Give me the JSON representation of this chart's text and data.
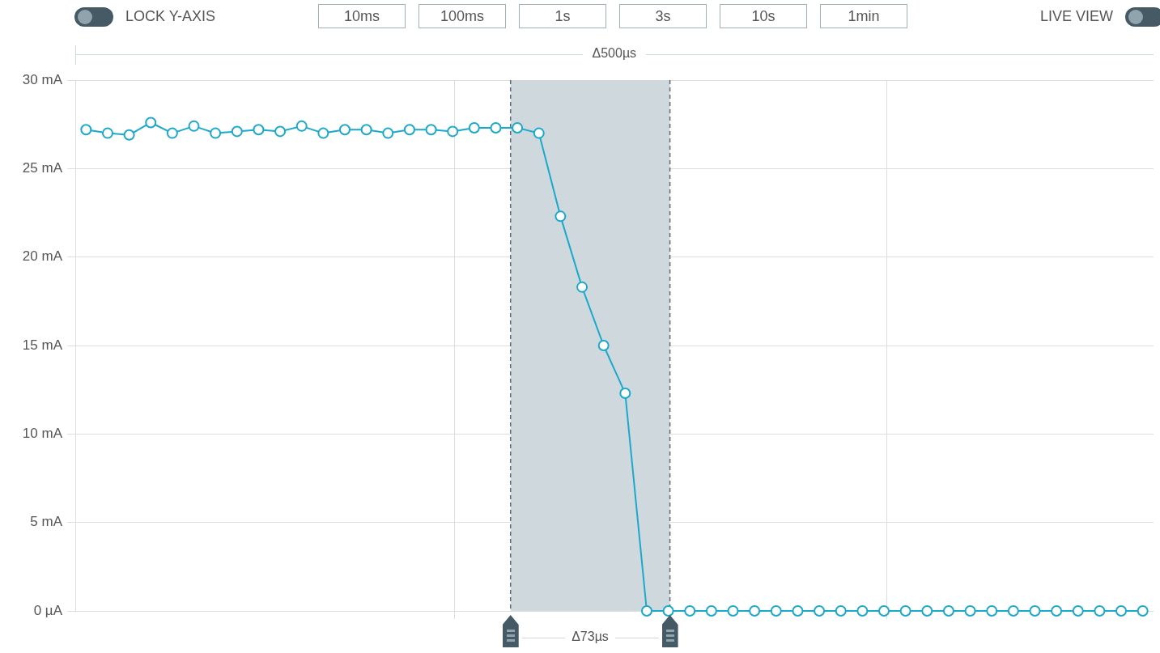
{
  "chart_data": {
    "type": "line",
    "categories": [
      null,
      null,
      null,
      null,
      null,
      null,
      null,
      null,
      null,
      null,
      null,
      null,
      null,
      null,
      null,
      null,
      null,
      null,
      null,
      null,
      null,
      null,
      null,
      null,
      null,
      null,
      null,
      null,
      null,
      null,
      null,
      null,
      null,
      null,
      null,
      null,
      null,
      null,
      null,
      null,
      null,
      null,
      null,
      null,
      null,
      null,
      null,
      null,
      null,
      null
    ],
    "series": [
      {
        "color": "#1aa9cc",
        "values": [
          27.2,
          27.0,
          26.9,
          27.6,
          27.0,
          27.4,
          27.0,
          27.1,
          27.2,
          27.1,
          27.4,
          27.0,
          27.2,
          27.2,
          27.0,
          27.2,
          27.2,
          27.1,
          27.3,
          27.3,
          27.3,
          27.0,
          22.3,
          18.3,
          15.0,
          12.3,
          0,
          0,
          0,
          0,
          0,
          0,
          0,
          0,
          0,
          0,
          0,
          0,
          0,
          0,
          0,
          0,
          0,
          0,
          0,
          0,
          0,
          0,
          0,
          0
        ]
      }
    ],
    "ylim": [
      0,
      30
    ],
    "yticks": [
      {
        "value": 0,
        "label": "0 µA"
      },
      {
        "value": 5,
        "label": "5 mA"
      },
      {
        "value": 10,
        "label": "10 mA"
      },
      {
        "value": 15,
        "label": "15 mA"
      },
      {
        "value": 20,
        "label": "20 mA"
      },
      {
        "value": 25,
        "label": "25 mA"
      },
      {
        "value": 30,
        "label": "30 mA"
      }
    ],
    "tick_labels": "y",
    "grid": "y",
    "legend": false,
    "marker": "circle",
    "line_style": "solid",
    "annotations": [
      "LOCK Y-AXIS",
      "10ms",
      "100ms",
      "1s",
      "3s",
      "10s",
      "1min",
      "LIVE VIEW",
      "Δ500µs",
      "Δ73µs"
    ]
  }
}
